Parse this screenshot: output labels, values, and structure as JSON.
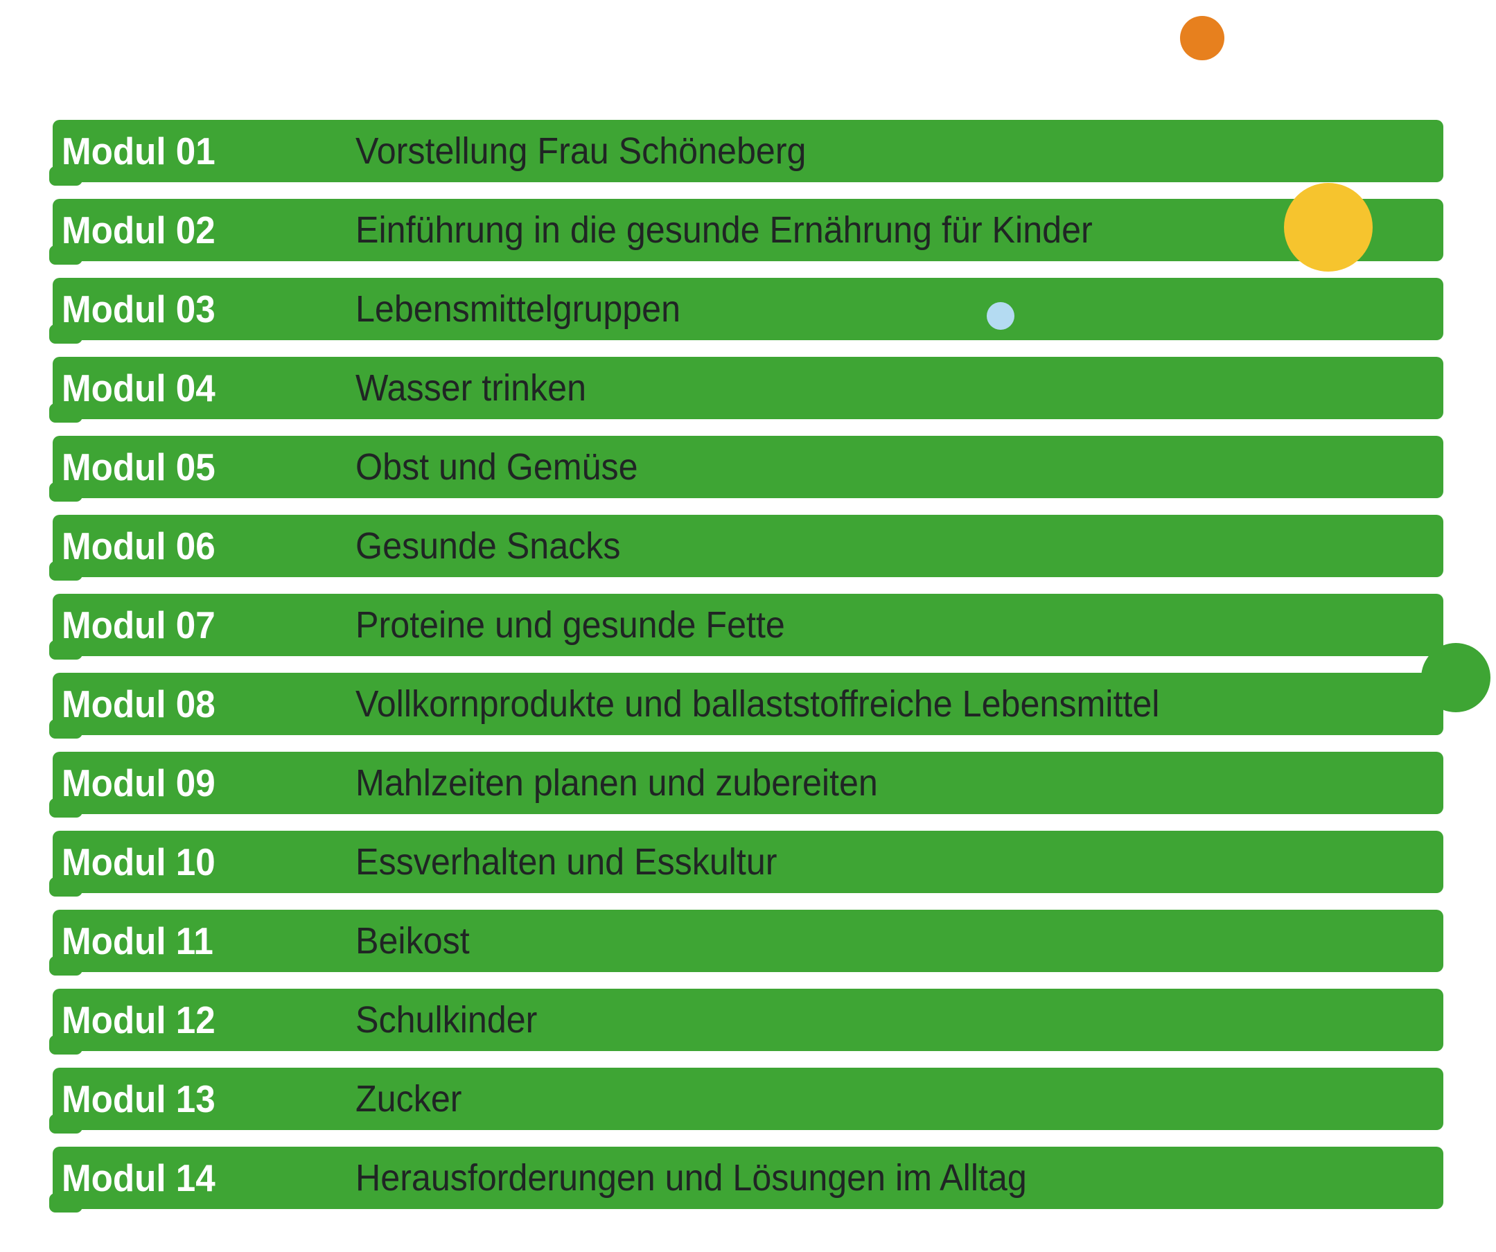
{
  "page": {
    "type": "presentation-slide-module-overview"
  },
  "colors": {
    "page_background": "#ffffff",
    "bar_green": "#3ea534",
    "label_white": "#ffffff",
    "text_dark": "#202524",
    "circle_orange": "#e7801e",
    "circle_yellow": "#f6c42e",
    "circle_blue": "#b4dbf2",
    "circle_green": "#3ea534"
  },
  "decorations": [
    {
      "name": "orange-circle",
      "color": "#e7801e"
    },
    {
      "name": "yellow-circle",
      "color": "#f6c42e"
    },
    {
      "name": "blue-circle",
      "color": "#b4dbf2"
    },
    {
      "name": "green-circle",
      "color": "#3ea534"
    }
  ],
  "modules": [
    {
      "label": "Modul 01",
      "title": "Vorstellung Frau Schöneberg"
    },
    {
      "label": "Modul 02",
      "title": "Einführung in die gesunde Ernährung für Kinder"
    },
    {
      "label": "Modul 03",
      "title": "Lebensmittelgruppen"
    },
    {
      "label": "Modul 04",
      "title": "Wasser trinken"
    },
    {
      "label": "Modul 05",
      "title": "Obst und Gemüse"
    },
    {
      "label": "Modul 06",
      "title": "Gesunde Snacks"
    },
    {
      "label": "Modul 07",
      "title": "Proteine und gesunde Fette"
    },
    {
      "label": "Modul 08",
      "title": "Vollkornprodukte und ballaststoffreiche Lebensmittel"
    },
    {
      "label": "Modul 09",
      "title": "Mahlzeiten planen und zubereiten"
    },
    {
      "label": "Modul 10",
      "title": "Essverhalten und Esskultur"
    },
    {
      "label": "Modul 11",
      "title": "Beikost"
    },
    {
      "label": "Modul 12",
      "title": "Schulkinder"
    },
    {
      "label": "Modul 13",
      "title": "Zucker"
    },
    {
      "label": "Modul 14",
      "title": "Herausforderungen und Lösungen im Alltag"
    }
  ]
}
